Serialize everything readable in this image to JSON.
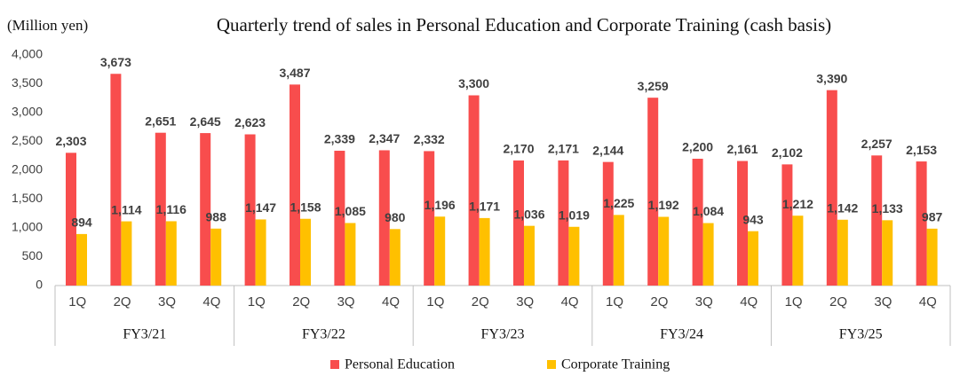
{
  "chart_data": {
    "type": "bar",
    "title": "Quarterly trend of sales in Personal Education and Corporate Training (cash basis)",
    "y_axis_label": "(Million yen)",
    "categories": [
      "1Q",
      "2Q",
      "3Q",
      "4Q",
      "1Q",
      "2Q",
      "3Q",
      "4Q",
      "1Q",
      "2Q",
      "3Q",
      "4Q",
      "1Q",
      "2Q",
      "3Q",
      "4Q",
      "1Q",
      "2Q",
      "3Q",
      "4Q"
    ],
    "category_groups": [
      "FY3/21",
      "FY3/22",
      "FY3/23",
      "FY3/24",
      "FY3/25"
    ],
    "series": [
      {
        "name": "Personal Education",
        "color": "#f84d4d",
        "values": [
          2303,
          3673,
          2651,
          2645,
          2623,
          3487,
          2339,
          2347,
          2332,
          3300,
          2170,
          2171,
          2144,
          3259,
          2200,
          2161,
          2102,
          3390,
          2257,
          2153
        ],
        "value_labels": [
          "2,303",
          "3,673",
          "2,651",
          "2,645",
          "2,623",
          "3,487",
          "2,339",
          "2,347",
          "2,332",
          "3,300",
          "2,170",
          "2,171",
          "2,144",
          "3,259",
          "2,200",
          "2,161",
          "2,102",
          "3,390",
          "2,257",
          "2,153"
        ]
      },
      {
        "name": "Corporate Training",
        "color": "#ffc000",
        "values": [
          894,
          1114,
          1116,
          988,
          1147,
          1158,
          1085,
          980,
          1196,
          1171,
          1036,
          1019,
          1225,
          1192,
          1084,
          943,
          1212,
          1142,
          1133,
          987
        ],
        "value_labels": [
          "894",
          "1,114",
          "1,116",
          "988",
          "1,147",
          "1,158",
          "1,085",
          "980",
          "1,196",
          "1,171",
          "1,036",
          "1,019",
          "1,225",
          "1,192",
          "1,084",
          "943",
          "1,212",
          "1,142",
          "1,133",
          "987"
        ]
      }
    ],
    "ylim": [
      0,
      4000
    ],
    "yticks": [
      0,
      500,
      {
        "value": 1000,
        "label": "1,000"
      },
      {
        "value": 1500,
        "label": "1,500"
      },
      {
        "value": 2000,
        "label": "2,000"
      },
      {
        "value": 2500,
        "label": "2,500"
      },
      {
        "value": 3000,
        "label": "3,000"
      },
      {
        "value": 3500,
        "label": "3,500"
      },
      {
        "value": 4000,
        "label": "4,000"
      }
    ],
    "grid": false,
    "legend": "bottom"
  }
}
